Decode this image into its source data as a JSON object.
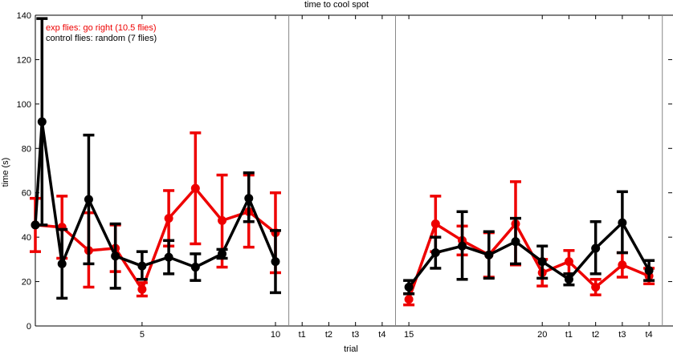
{
  "chart_data": {
    "type": "line",
    "title": "time to cool spot",
    "xlabel": "trial",
    "ylabel": "time (s)",
    "ylim": [
      0,
      140
    ],
    "yticks": [
      0,
      20,
      40,
      60,
      80,
      100,
      120,
      140
    ],
    "xticks": [
      {
        "x": 5,
        "label": "5"
      },
      {
        "x": 10,
        "label": "10"
      },
      {
        "x": 11,
        "label": "t1"
      },
      {
        "x": 12,
        "label": "t2"
      },
      {
        "x": 13,
        "label": "t3"
      },
      {
        "x": 14,
        "label": "t4"
      },
      {
        "x": 15,
        "label": "15"
      },
      {
        "x": 20,
        "label": "20"
      },
      {
        "x": 21,
        "label": "t1"
      },
      {
        "x": 22,
        "label": "t2"
      },
      {
        "x": 23,
        "label": "t3"
      },
      {
        "x": 24,
        "label": "t4"
      }
    ],
    "grid": false,
    "legend_position": "top-left",
    "series": [
      {
        "name": "exp flies: go right (10.5 flies)",
        "color": "#ee0000",
        "points": [
          {
            "x": 1.0,
            "y": 45.5,
            "lo": 33.5,
            "hi": 57.5
          },
          {
            "x": 2.0,
            "y": 44.5,
            "lo": 30.5,
            "hi": 58.5
          },
          {
            "x": 3.0,
            "y": 34.0,
            "lo": 17.5,
            "hi": 51.0
          },
          {
            "x": 4.0,
            "y": 35.0,
            "lo": 24.5,
            "hi": 45.5
          },
          {
            "x": 5.0,
            "y": 16.5,
            "lo": 13.5,
            "hi": 19.5
          },
          {
            "x": 6.0,
            "y": 48.5,
            "lo": 36.0,
            "hi": 61.0
          },
          {
            "x": 7.0,
            "y": 62.0,
            "lo": 37.0,
            "hi": 87.0
          },
          {
            "x": 8.0,
            "y": 47.5,
            "lo": 26.5,
            "hi": 68.0
          },
          {
            "x": 9.0,
            "y": 51.5,
            "lo": 35.5,
            "hi": 68.0
          },
          {
            "x": 10.0,
            "y": 42.0,
            "lo": 24.0,
            "hi": 60.0
          },
          {
            "x": 15.0,
            "y": 12.0,
            "lo": 9.5,
            "hi": 14.5
          },
          {
            "x": 16.0,
            "y": 46.0,
            "lo": 33.5,
            "hi": 58.5
          },
          {
            "x": 17.0,
            "y": 38.5,
            "lo": 32.0,
            "hi": 45.0
          },
          {
            "x": 18.0,
            "y": 32.0,
            "lo": 22.0,
            "hi": 42.0
          },
          {
            "x": 19.0,
            "y": 46.0,
            "lo": 27.5,
            "hi": 65.0
          },
          {
            "x": 20.0,
            "y": 24.0,
            "lo": 18.0,
            "hi": 30.0
          },
          {
            "x": 21.0,
            "y": 29.0,
            "lo": 23.5,
            "hi": 34.0
          },
          {
            "x": 22.0,
            "y": 17.5,
            "lo": 14.0,
            "hi": 21.0
          },
          {
            "x": 23.0,
            "y": 27.5,
            "lo": 22.0,
            "hi": 33.0
          },
          {
            "x": 24.0,
            "y": 22.5,
            "lo": 19.0,
            "hi": 26.0
          }
        ]
      },
      {
        "name": "control flies: random (7 flies)",
        "color": "#000000",
        "points": [
          {
            "x": 1.0,
            "y": 45.5,
            "lo": 45.5,
            "hi": 45.5
          },
          {
            "x": 1.25,
            "y": 92.0,
            "lo": 45.5,
            "hi": 138.5
          },
          {
            "x": 2.0,
            "y": 28.0,
            "lo": 12.5,
            "hi": 43.5
          },
          {
            "x": 3.0,
            "y": 57.0,
            "lo": 28.0,
            "hi": 86.0
          },
          {
            "x": 4.0,
            "y": 31.5,
            "lo": 17.0,
            "hi": 46.0
          },
          {
            "x": 5.0,
            "y": 27.0,
            "lo": 21.0,
            "hi": 33.5
          },
          {
            "x": 6.0,
            "y": 31.0,
            "lo": 23.5,
            "hi": 38.5
          },
          {
            "x": 7.0,
            "y": 26.5,
            "lo": 20.5,
            "hi": 32.5
          },
          {
            "x": 8.0,
            "y": 32.5,
            "lo": 30.5,
            "hi": 34.5
          },
          {
            "x": 9.0,
            "y": 57.5,
            "lo": 47.0,
            "hi": 69.0
          },
          {
            "x": 10.0,
            "y": 29.0,
            "lo": 15.0,
            "hi": 43.0
          },
          {
            "x": 15.0,
            "y": 17.5,
            "lo": 14.5,
            "hi": 20.5
          },
          {
            "x": 16.0,
            "y": 33.0,
            "lo": 26.0,
            "hi": 40.0
          },
          {
            "x": 17.0,
            "y": 36.0,
            "lo": 21.0,
            "hi": 51.5
          },
          {
            "x": 18.0,
            "y": 32.0,
            "lo": 21.5,
            "hi": 42.5
          },
          {
            "x": 19.0,
            "y": 38.0,
            "lo": 28.0,
            "hi": 48.5
          },
          {
            "x": 20.0,
            "y": 29.0,
            "lo": 21.5,
            "hi": 36.0
          },
          {
            "x": 21.0,
            "y": 21.0,
            "lo": 18.5,
            "hi": 23.5
          },
          {
            "x": 22.0,
            "y": 35.0,
            "lo": 23.5,
            "hi": 47.0
          },
          {
            "x": 23.0,
            "y": 46.5,
            "lo": 33.0,
            "hi": 60.5
          },
          {
            "x": 24.0,
            "y": 25.0,
            "lo": 20.5,
            "hi": 29.5
          }
        ]
      }
    ],
    "separators_after_x": [
      10.5,
      14.5,
      24.5
    ]
  }
}
